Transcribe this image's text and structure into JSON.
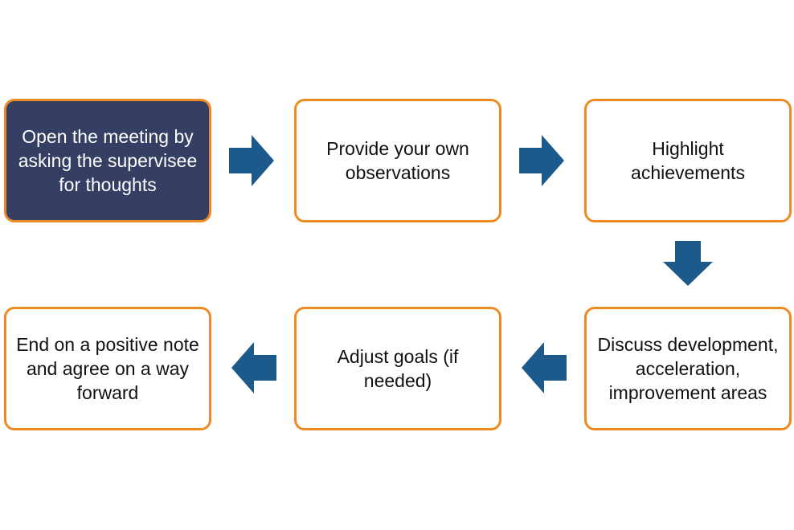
{
  "flow": {
    "steps": [
      {
        "id": "open",
        "text": "Open the meeting by asking the supervisee for thoughts"
      },
      {
        "id": "observations",
        "text": "Provide your own observations"
      },
      {
        "id": "highlight",
        "text": "Highlight achievements"
      },
      {
        "id": "discuss",
        "text": "Discuss development, acceleration, improvement  areas"
      },
      {
        "id": "adjust",
        "text": "Adjust goals (if needed)"
      },
      {
        "id": "end",
        "text": "End on a positive note and agree on a way forward"
      }
    ],
    "arrows": [
      {
        "from": "open",
        "to": "observations",
        "direction": "right"
      },
      {
        "from": "observations",
        "to": "highlight",
        "direction": "right"
      },
      {
        "from": "highlight",
        "to": "discuss",
        "direction": "down"
      },
      {
        "from": "discuss",
        "to": "adjust",
        "direction": "left"
      },
      {
        "from": "adjust",
        "to": "end",
        "direction": "left"
      }
    ]
  },
  "colors": {
    "border": "#ee8a22",
    "highlight_fill": "#353e63",
    "arrow": "#1d5a8c",
    "text": "#111111"
  }
}
